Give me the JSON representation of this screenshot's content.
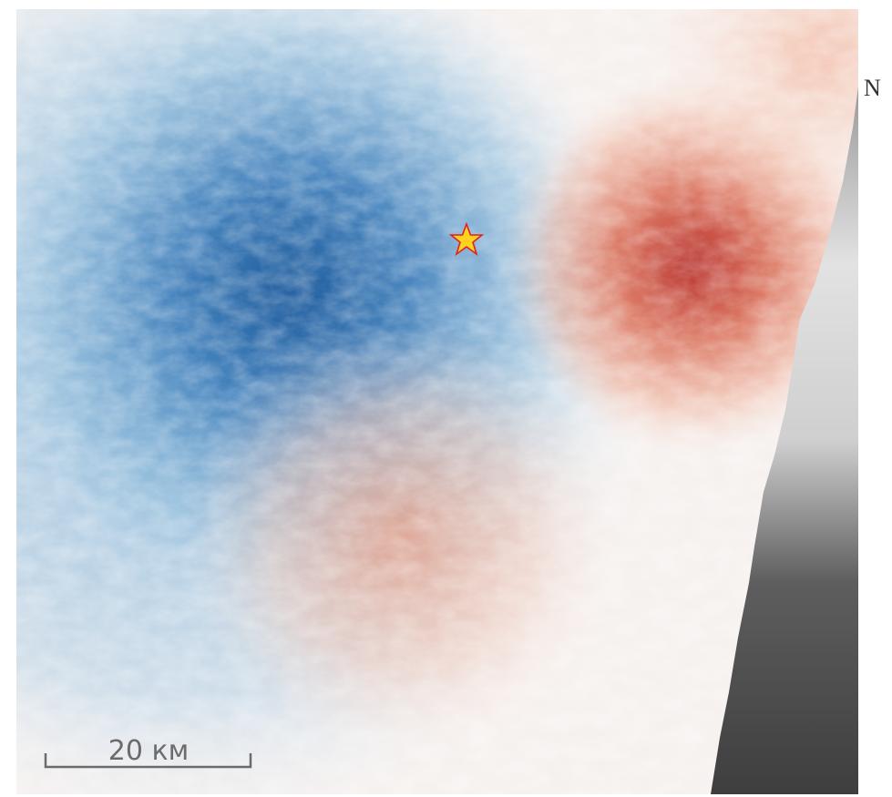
{
  "scale_bar": {
    "label": "20 км"
  },
  "north_arrow": {
    "label": "N"
  }
}
